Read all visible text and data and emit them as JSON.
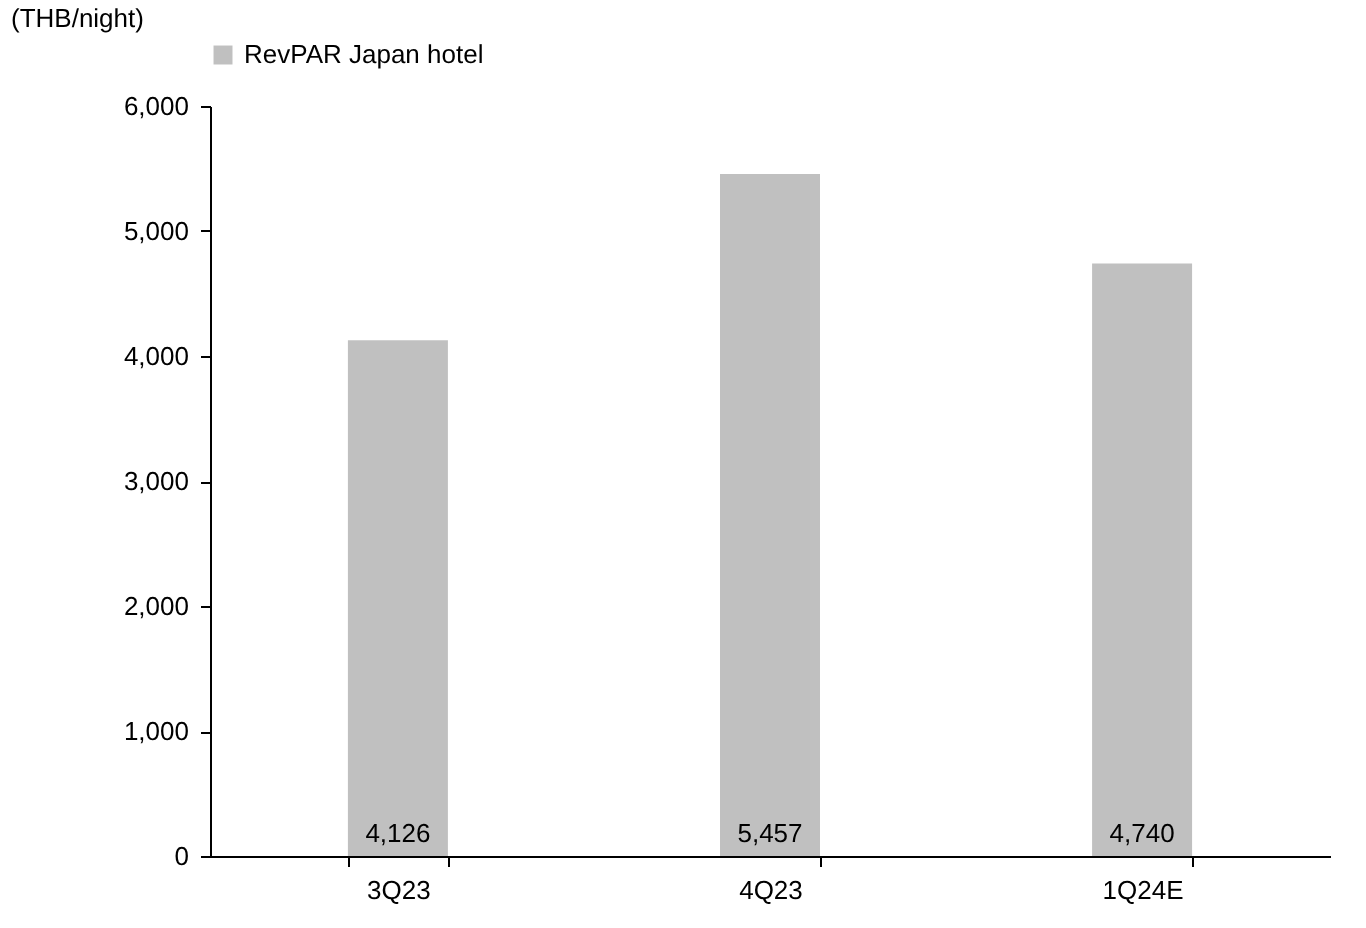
{
  "chart_data": {
    "type": "bar",
    "ylabel": "(THB/night)",
    "categories": [
      "3Q23",
      "4Q23",
      "1Q24E"
    ],
    "series": [
      {
        "name": "RevPAR Japan hotel",
        "color": "#c0c0c0",
        "values": [
          4126,
          5457,
          4740
        ],
        "value_labels": [
          "4,126",
          "5,457",
          "4,740"
        ]
      }
    ],
    "ylim": [
      0,
      6000
    ],
    "yticks": [
      0,
      {
        "value": 1000,
        "label": "1,000"
      },
      {
        "value": 2000,
        "label": "2,000"
      },
      {
        "value": 3000,
        "label": "3,000"
      },
      {
        "value": 4000,
        "label": "4,000"
      },
      {
        "value": 5000,
        "label": "5,000"
      },
      {
        "value": 6000,
        "label": "6,000"
      }
    ],
    "grid": false,
    "legend": "top"
  }
}
